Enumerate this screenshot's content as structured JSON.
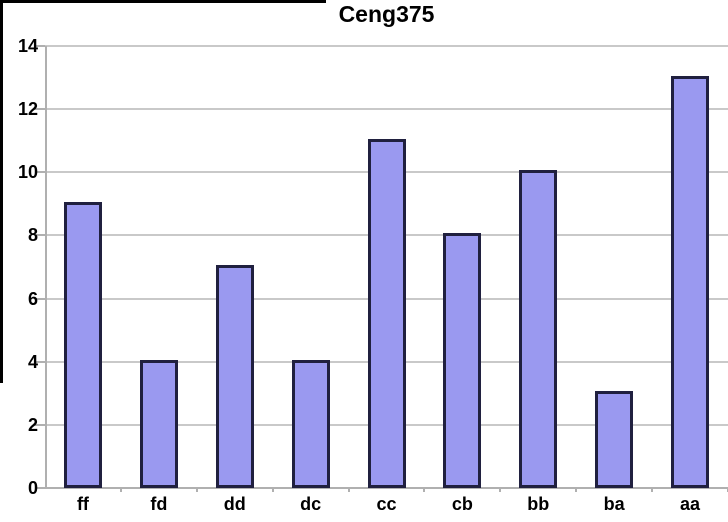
{
  "chart_data": {
    "type": "bar",
    "title": "Ceng375",
    "categories": [
      "ff",
      "fd",
      "dd",
      "dc",
      "cc",
      "cb",
      "bb",
      "ba",
      "aa"
    ],
    "values": [
      9,
      4,
      7,
      4,
      11,
      8,
      10,
      3,
      13
    ],
    "xlabel": "",
    "ylabel": "",
    "ylim": [
      0,
      14
    ],
    "yticks": [
      0,
      2,
      4,
      6,
      8,
      10,
      12,
      14
    ],
    "grid": "horizontal-only",
    "legend": "none",
    "colors": {
      "bar_fill": "#9a99f0",
      "bar_border": "#20203f",
      "gridline": "#c9c9c9",
      "axis": "#b0b0b0",
      "text": "#000000",
      "frame": "#000000",
      "background": "#ffffff"
    }
  }
}
